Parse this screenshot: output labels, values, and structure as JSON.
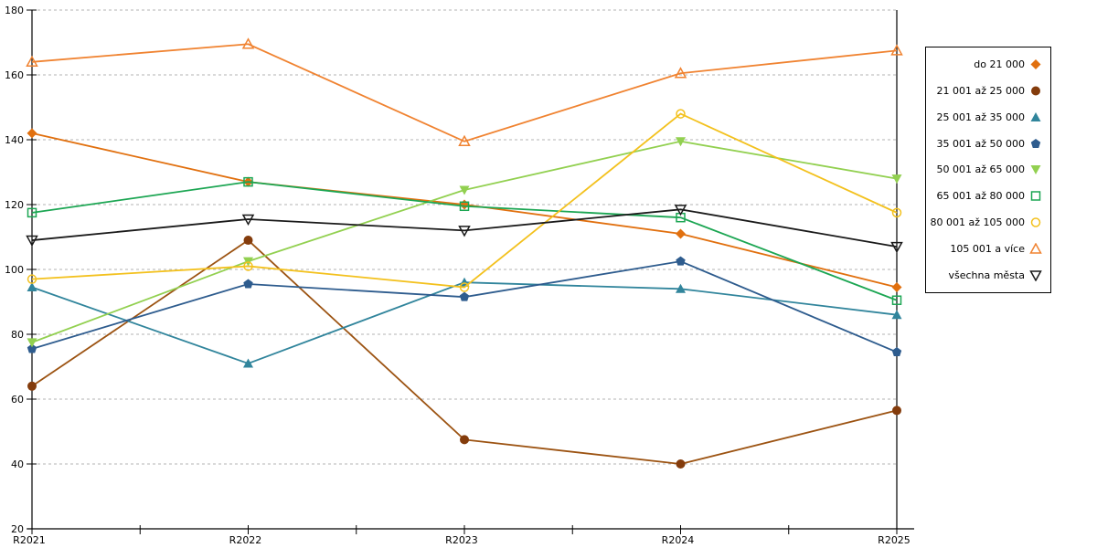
{
  "chart_data": {
    "type": "line",
    "title": "",
    "xlabel": "",
    "ylabel": "",
    "x_categories": [
      "R2021",
      "R2022",
      "R2023",
      "R2024",
      "R2025"
    ],
    "ylim": [
      20,
      180
    ],
    "ytick_step": 20,
    "grid": "horizontal-dashed",
    "gridline_color": "#b3b3b3",
    "legend_position": "right-outside",
    "series": [
      {
        "name": "do 21 000",
        "color": "#e1700f",
        "marker": "diamond",
        "fill": "solid",
        "values": [
          142,
          127,
          120,
          111,
          94.5
        ]
      },
      {
        "name": "21 001 až 25 000",
        "color": "#9c5312",
        "marker": "circle",
        "fill": "solid",
        "marker_color": "#843c0c",
        "values": [
          64,
          109,
          47.5,
          40,
          56.5
        ]
      },
      {
        "name": "25 001 až 35 000",
        "color": "#31859c",
        "marker": "triangle-up",
        "fill": "solid",
        "values": [
          94.5,
          71,
          96,
          94,
          86
        ]
      },
      {
        "name": "35 001 až 50 000",
        "color": "#2e5c8e",
        "marker": "pentagon",
        "fill": "solid",
        "values": [
          75.5,
          95.5,
          91.5,
          102.5,
          74.5
        ]
      },
      {
        "name": "50 001 až 65 000",
        "color": "#92d050",
        "marker": "triangle-down",
        "fill": "solid",
        "values": [
          77.5,
          102.5,
          124.5,
          139.5,
          128
        ]
      },
      {
        "name": "65 001 až 80 000",
        "color": "#1ca653",
        "marker": "square",
        "fill": "open",
        "values": [
          117.5,
          127,
          119.5,
          116,
          90.5
        ]
      },
      {
        "name": "80 001 až 105 000",
        "color": "#f3c11e",
        "marker": "circle",
        "fill": "open",
        "values": [
          97,
          101,
          94.5,
          148,
          117.5
        ]
      },
      {
        "name": "105 001 a více",
        "color": "#f08331",
        "marker": "triangle-up",
        "fill": "open",
        "values": [
          164,
          169.5,
          139.5,
          160.5,
          167.5
        ]
      },
      {
        "name": "všechna města",
        "color": "#1a1a1a",
        "marker": "triangle-down",
        "fill": "open",
        "values": [
          109,
          115.5,
          112,
          118.5,
          107
        ]
      }
    ]
  },
  "layout_note": "line chart, markers at 5 yearly points, legend box upper right"
}
